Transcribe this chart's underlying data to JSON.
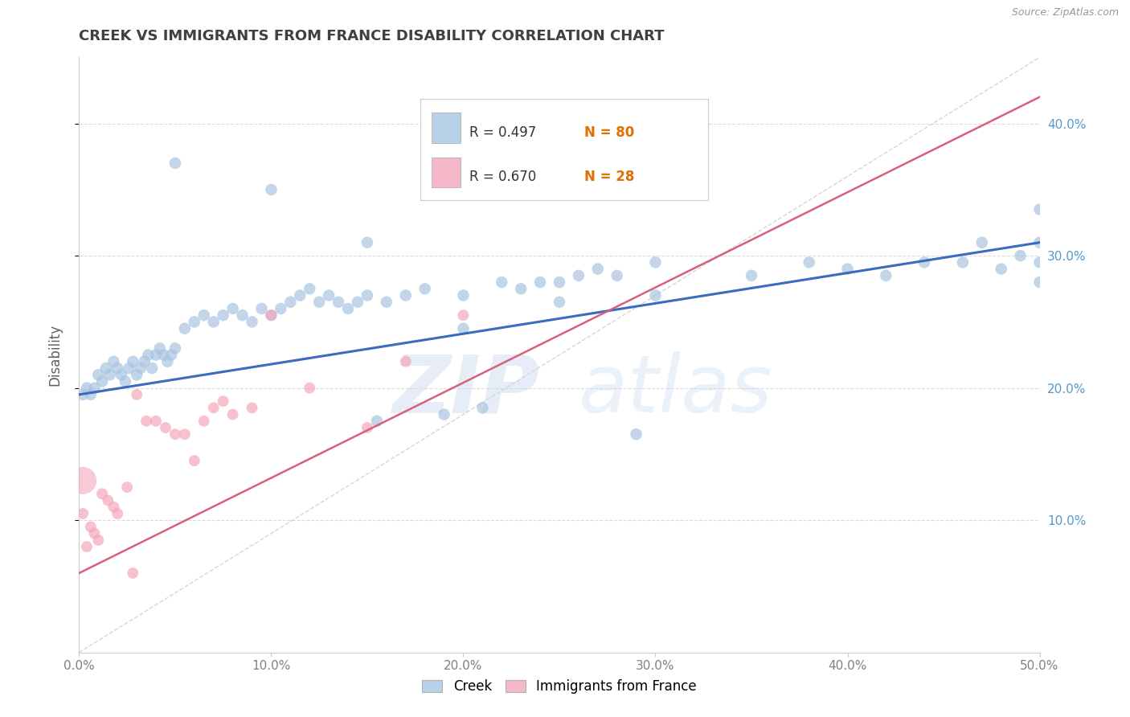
{
  "title": "CREEK VS IMMIGRANTS FROM FRANCE DISABILITY CORRELATION CHART",
  "source": "Source: ZipAtlas.com",
  "ylabel": "Disability",
  "xlim": [
    0.0,
    0.5
  ],
  "ylim": [
    0.0,
    0.45
  ],
  "xtick_vals": [
    0.0,
    0.1,
    0.2,
    0.3,
    0.4,
    0.5
  ],
  "xtick_labels": [
    "0.0%",
    "10.0%",
    "20.0%",
    "30.0%",
    "40.0%",
    "50.0%"
  ],
  "ytick_vals": [
    0.1,
    0.2,
    0.3,
    0.4
  ],
  "ytick_labels": [
    "10.0%",
    "20.0%",
    "30.0%",
    "40.0%"
  ],
  "creek_color": "#a8c4e0",
  "creek_line_color": "#3a6bbf",
  "france_color": "#f4a7b9",
  "france_line_color": "#d9607a",
  "legend_box_creek": "#b8d0e8",
  "legend_box_france": "#f4b8c8",
  "R_creek": 0.497,
  "N_creek": 80,
  "R_france": 0.67,
  "N_france": 28,
  "creek_scatter_x": [
    0.002,
    0.004,
    0.006,
    0.008,
    0.01,
    0.012,
    0.014,
    0.016,
    0.018,
    0.02,
    0.022,
    0.024,
    0.026,
    0.028,
    0.03,
    0.032,
    0.034,
    0.036,
    0.038,
    0.04,
    0.042,
    0.044,
    0.046,
    0.048,
    0.05,
    0.055,
    0.06,
    0.065,
    0.07,
    0.075,
    0.08,
    0.085,
    0.09,
    0.095,
    0.1,
    0.105,
    0.11,
    0.115,
    0.12,
    0.125,
    0.13,
    0.135,
    0.14,
    0.145,
    0.15,
    0.155,
    0.16,
    0.17,
    0.18,
    0.19,
    0.2,
    0.21,
    0.22,
    0.23,
    0.24,
    0.25,
    0.26,
    0.27,
    0.28,
    0.29,
    0.05,
    0.1,
    0.15,
    0.2,
    0.25,
    0.3,
    0.35,
    0.38,
    0.4,
    0.42,
    0.44,
    0.46,
    0.47,
    0.48,
    0.49,
    0.5,
    0.5,
    0.5,
    0.5,
    0.3
  ],
  "creek_scatter_y": [
    0.195,
    0.2,
    0.195,
    0.2,
    0.21,
    0.205,
    0.215,
    0.21,
    0.22,
    0.215,
    0.21,
    0.205,
    0.215,
    0.22,
    0.21,
    0.215,
    0.22,
    0.225,
    0.215,
    0.225,
    0.23,
    0.225,
    0.22,
    0.225,
    0.23,
    0.245,
    0.25,
    0.255,
    0.25,
    0.255,
    0.26,
    0.255,
    0.25,
    0.26,
    0.255,
    0.26,
    0.265,
    0.27,
    0.275,
    0.265,
    0.27,
    0.265,
    0.26,
    0.265,
    0.27,
    0.175,
    0.265,
    0.27,
    0.275,
    0.18,
    0.245,
    0.185,
    0.28,
    0.275,
    0.28,
    0.28,
    0.285,
    0.29,
    0.285,
    0.165,
    0.37,
    0.35,
    0.31,
    0.27,
    0.265,
    0.295,
    0.285,
    0.295,
    0.29,
    0.285,
    0.295,
    0.295,
    0.31,
    0.29,
    0.3,
    0.31,
    0.295,
    0.335,
    0.28,
    0.27
  ],
  "france_scatter_x": [
    0.002,
    0.004,
    0.006,
    0.008,
    0.01,
    0.012,
    0.015,
    0.018,
    0.02,
    0.025,
    0.028,
    0.03,
    0.035,
    0.04,
    0.045,
    0.05,
    0.055,
    0.06,
    0.065,
    0.07,
    0.075,
    0.08,
    0.09,
    0.1,
    0.12,
    0.15,
    0.17,
    0.2
  ],
  "france_scatter_y": [
    0.105,
    0.08,
    0.095,
    0.09,
    0.085,
    0.12,
    0.115,
    0.11,
    0.105,
    0.125,
    0.06,
    0.195,
    0.175,
    0.175,
    0.17,
    0.165,
    0.165,
    0.145,
    0.175,
    0.185,
    0.19,
    0.18,
    0.185,
    0.255,
    0.2,
    0.17,
    0.22,
    0.255
  ],
  "france_large_x": [
    0.002
  ],
  "france_large_y": [
    0.13
  ],
  "creek_line_x": [
    0.0,
    0.5
  ],
  "creek_line_y": [
    0.195,
    0.31
  ],
  "france_line_x": [
    0.0,
    0.5
  ],
  "france_line_y": [
    0.06,
    0.42
  ],
  "diag_line_x": [
    0.0,
    0.5
  ],
  "diag_line_y": [
    0.0,
    0.45
  ],
  "watermark_zip": "ZIP",
  "watermark_atlas": "atlas",
  "title_color": "#404040",
  "title_fontsize": 13,
  "axis_label_color": "#606060",
  "tick_color": "#808080",
  "right_tick_color": "#5599cc",
  "grid_color": "#d8d8d8",
  "source_color": "#999999",
  "legend_text_color": "#333333",
  "legend_n_color": "#e07000",
  "legend_r_color": "#333333"
}
